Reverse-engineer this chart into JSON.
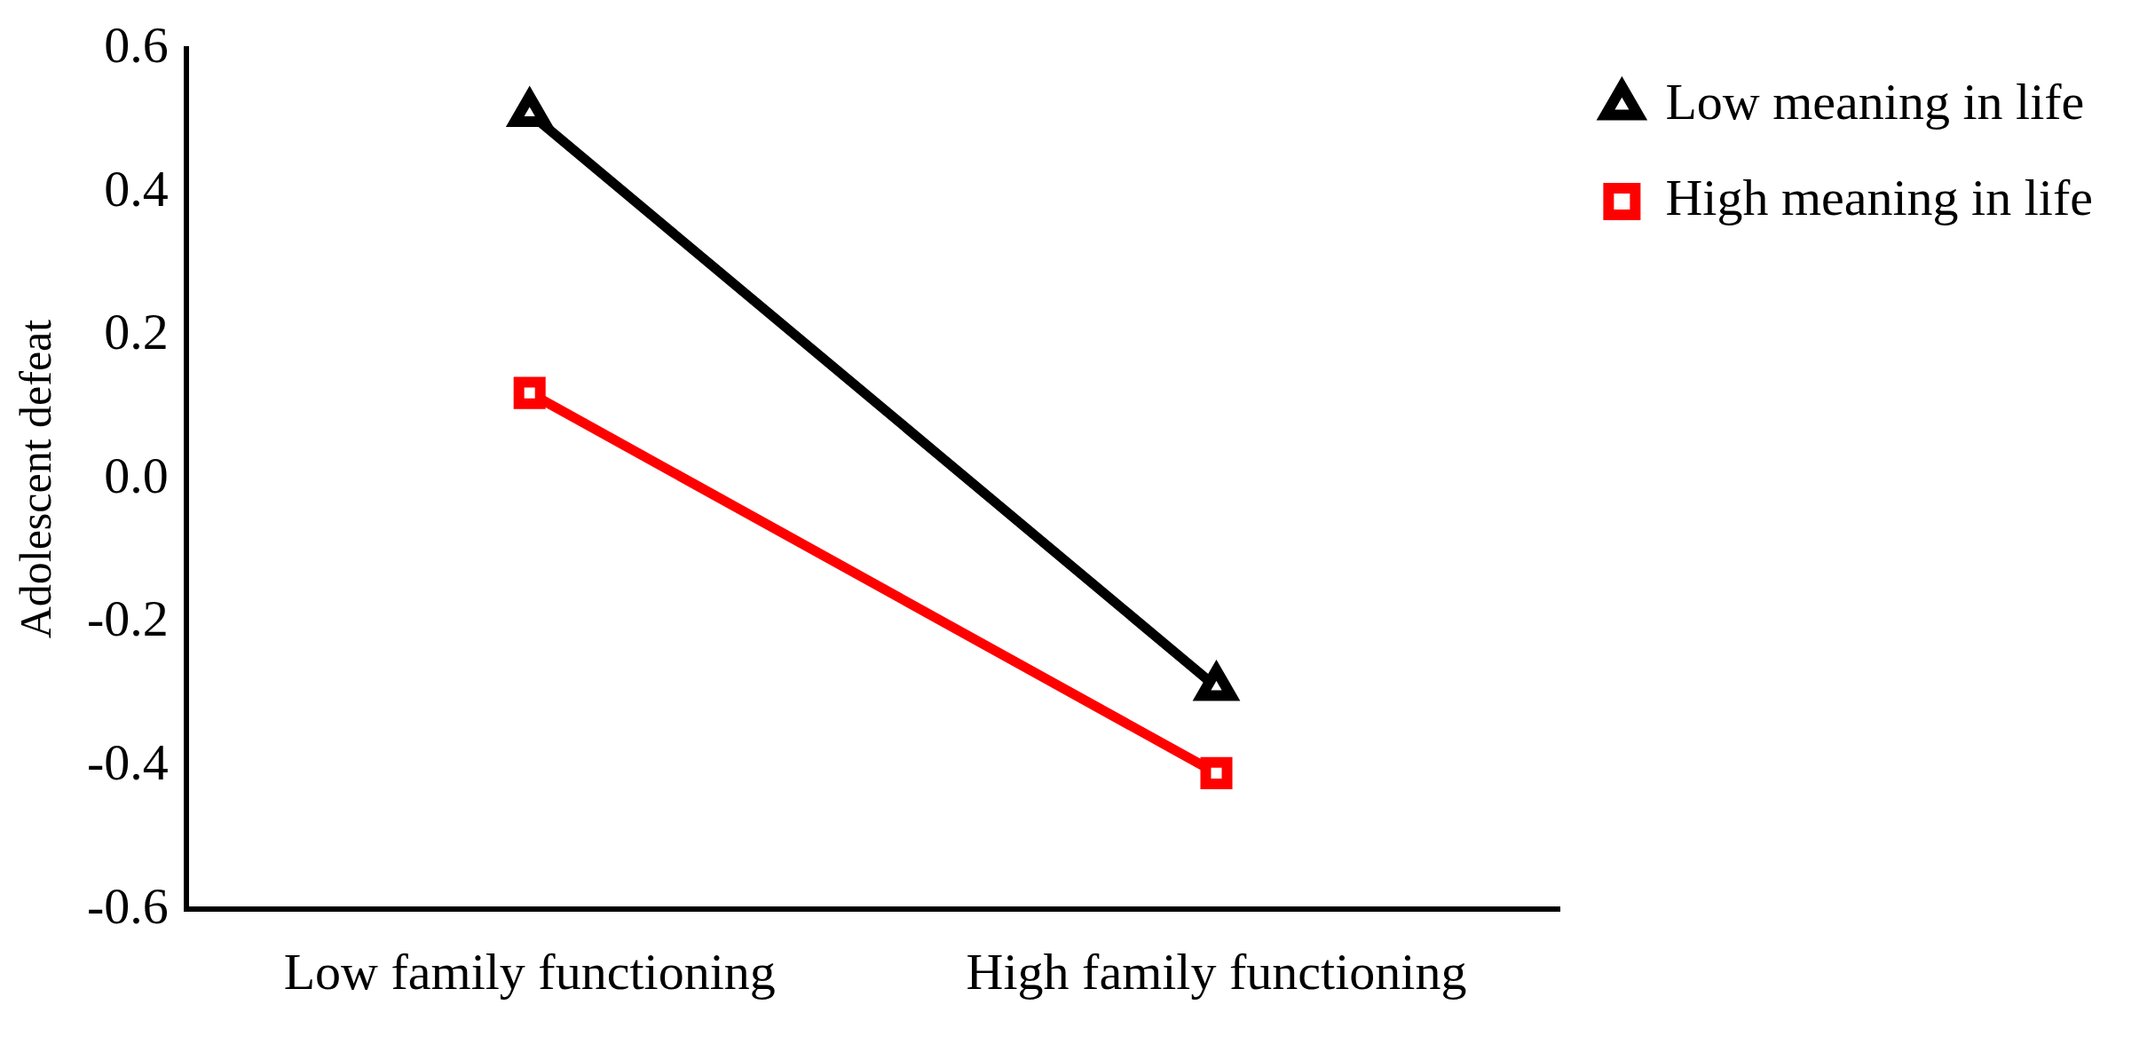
{
  "chart_data": {
    "type": "line",
    "ylabel": "Adolescent defeat",
    "categories": [
      "Low family functioning",
      "High family functioning"
    ],
    "series": [
      {
        "name": "Low meaning in life",
        "color": "#000000",
        "marker": "triangle",
        "values": [
          0.51,
          -0.29
        ]
      },
      {
        "name": "High meaning in life",
        "color": "#ff0000",
        "marker": "square",
        "values": [
          0.12,
          -0.41
        ]
      }
    ],
    "ylim": [
      -0.6,
      0.6
    ],
    "yticks": [
      {
        "value": -0.6,
        "label": "-0.6"
      },
      {
        "value": -0.4,
        "label": "-0.4"
      },
      {
        "value": -0.2,
        "label": "-0.2"
      },
      {
        "value": 0,
        "label": "0.0"
      },
      {
        "value": 0.2,
        "label": "0.2"
      },
      {
        "value": 0.4,
        "label": "0.4"
      },
      {
        "value": 0.6,
        "label": "0.6"
      }
    ],
    "grid": false,
    "legend": "top right",
    "line_style": "solid"
  }
}
